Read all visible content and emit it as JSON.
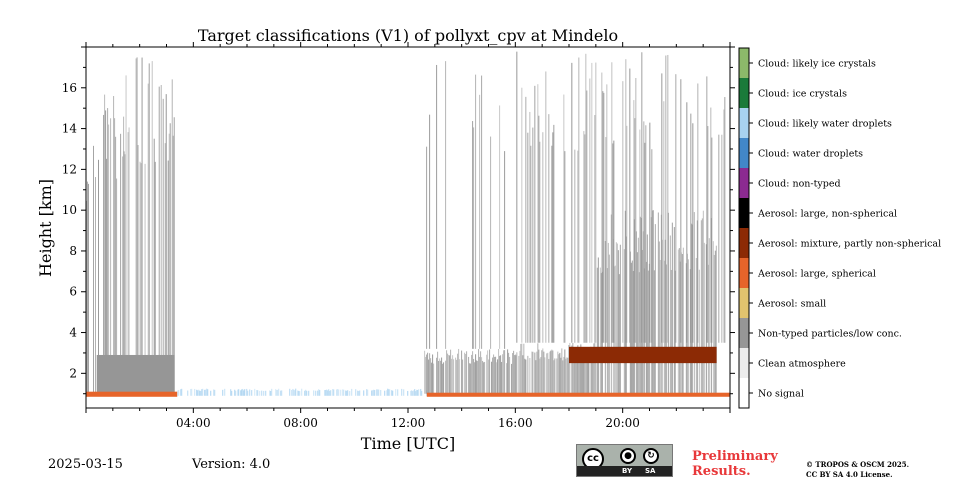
{
  "chart_data": {
    "type": "heatmap",
    "title": "Target classifications (V1) of pollyxt_cpv at Mindelo",
    "xlabel": "Time [UTC]",
    "ylabel": "Height [km]",
    "xlim": [
      0,
      24
    ],
    "ylim": [
      0.3,
      18
    ],
    "x_ticks": [
      {
        "value": 4,
        "label": "04:00"
      },
      {
        "value": 8,
        "label": "08:00"
      },
      {
        "value": 12,
        "label": "12:00"
      },
      {
        "value": 16,
        "label": "16:00"
      },
      {
        "value": 20,
        "label": "20:00"
      }
    ],
    "y_ticks": [
      {
        "value": 2,
        "label": "2"
      },
      {
        "value": 4,
        "label": "4"
      },
      {
        "value": 6,
        "label": "6"
      },
      {
        "value": 8,
        "label": "8"
      },
      {
        "value": 10,
        "label": "10"
      },
      {
        "value": 12,
        "label": "12"
      },
      {
        "value": 14,
        "label": "14"
      },
      {
        "value": 16,
        "label": "16"
      }
    ],
    "grid": false,
    "legend_placement": "right colorbar",
    "classes": [
      {
        "label": "No signal",
        "color": "#ffffff"
      },
      {
        "label": "Clean atmosphere",
        "color": "#ececec"
      },
      {
        "label": "Non-typed particles/low conc.",
        "color": "#969696"
      },
      {
        "label": "Aerosol: small",
        "color": "#e1c36e"
      },
      {
        "label": "Aerosol: large, spherical",
        "color": "#e6642a"
      },
      {
        "label": "Aerosol: mixture, partly non-spherical",
        "color": "#8c2a05"
      },
      {
        "label": "Aerosol: large, non-spherical",
        "color": "#000000"
      },
      {
        "label": "Cloud: non-typed",
        "color": "#8b2a91"
      },
      {
        "label": "Cloud: water droplets",
        "color": "#4287c8"
      },
      {
        "label": "Cloud: likely water droplets",
        "color": "#a8d2f0"
      },
      {
        "label": "Cloud: ice crystals",
        "color": "#1a7a3a"
      },
      {
        "label": "Cloud: likely ice crystals",
        "color": "#8cb96a"
      }
    ],
    "regions": [
      {
        "class": "Non-typed particles/low conc.",
        "time": [
          0.0,
          0.6
        ],
        "height": [
          0.9,
          15.0
        ],
        "density": 0.35
      },
      {
        "class": "Non-typed particles/low conc.",
        "time": [
          0.6,
          1.4
        ],
        "height": [
          0.9,
          16.5
        ],
        "density": 0.6
      },
      {
        "class": "Non-typed particles/low conc.",
        "time": [
          1.4,
          2.3
        ],
        "height": [
          0.9,
          17.5
        ],
        "density": 0.55
      },
      {
        "class": "Non-typed particles/low conc.",
        "time": [
          2.3,
          3.3
        ],
        "height": [
          0.9,
          17.5
        ],
        "density": 0.7
      },
      {
        "class": "Non-typed particles/low conc.",
        "time": [
          0.4,
          3.3
        ],
        "height": [
          0.9,
          2.9
        ],
        "density": 1.0
      },
      {
        "class": "Aerosol: large, spherical",
        "time": [
          0.0,
          3.4
        ],
        "height": [
          0.85,
          1.1
        ],
        "density": 1.0
      },
      {
        "class": "Cloud: likely water droplets",
        "time": [
          3.4,
          12.7
        ],
        "height": [
          0.9,
          1.25
        ],
        "density": 0.6
      },
      {
        "class": "Non-typed particles/low conc.",
        "time": [
          12.6,
          16.0
        ],
        "height": [
          1.0,
          3.2
        ],
        "density": 0.9
      },
      {
        "class": "Non-typed particles/low conc.",
        "time": [
          12.6,
          16.0
        ],
        "height": [
          3.2,
          17.8
        ],
        "density": 0.1
      },
      {
        "class": "Non-typed particles/low conc.",
        "time": [
          16.0,
          19.0
        ],
        "height": [
          1.0,
          3.5
        ],
        "density": 0.85
      },
      {
        "class": "Non-typed particles/low conc.",
        "time": [
          16.0,
          23.8
        ],
        "height": [
          3.5,
          17.8
        ],
        "density": 0.3
      },
      {
        "class": "Non-typed particles/low conc.",
        "time": [
          19.0,
          23.5
        ],
        "height": [
          1.0,
          10.0
        ],
        "density": 0.75
      },
      {
        "class": "Aerosol: mixture, partly non-spherical",
        "time": [
          18.0,
          23.5
        ],
        "height": [
          2.5,
          3.3
        ],
        "density": 1.0
      },
      {
        "class": "Aerosol: large, spherical",
        "time": [
          12.7,
          24.0
        ],
        "height": [
          0.85,
          1.05
        ],
        "density": 1.0
      }
    ]
  },
  "footer": {
    "date": "2025-03-15",
    "version": "Version: 4.0",
    "license_badge": {
      "cc": "cc",
      "by": "BY",
      "sa": "SA"
    },
    "preliminary_line1": "Preliminary",
    "preliminary_line2": "Results.",
    "copyright_line1": "© TROPOS & OSCM 2025.",
    "copyright_line2": "CC BY SA 4.0 License."
  },
  "icons": [
    "cc-icon",
    "by-person-icon",
    "sa-share-icon"
  ]
}
